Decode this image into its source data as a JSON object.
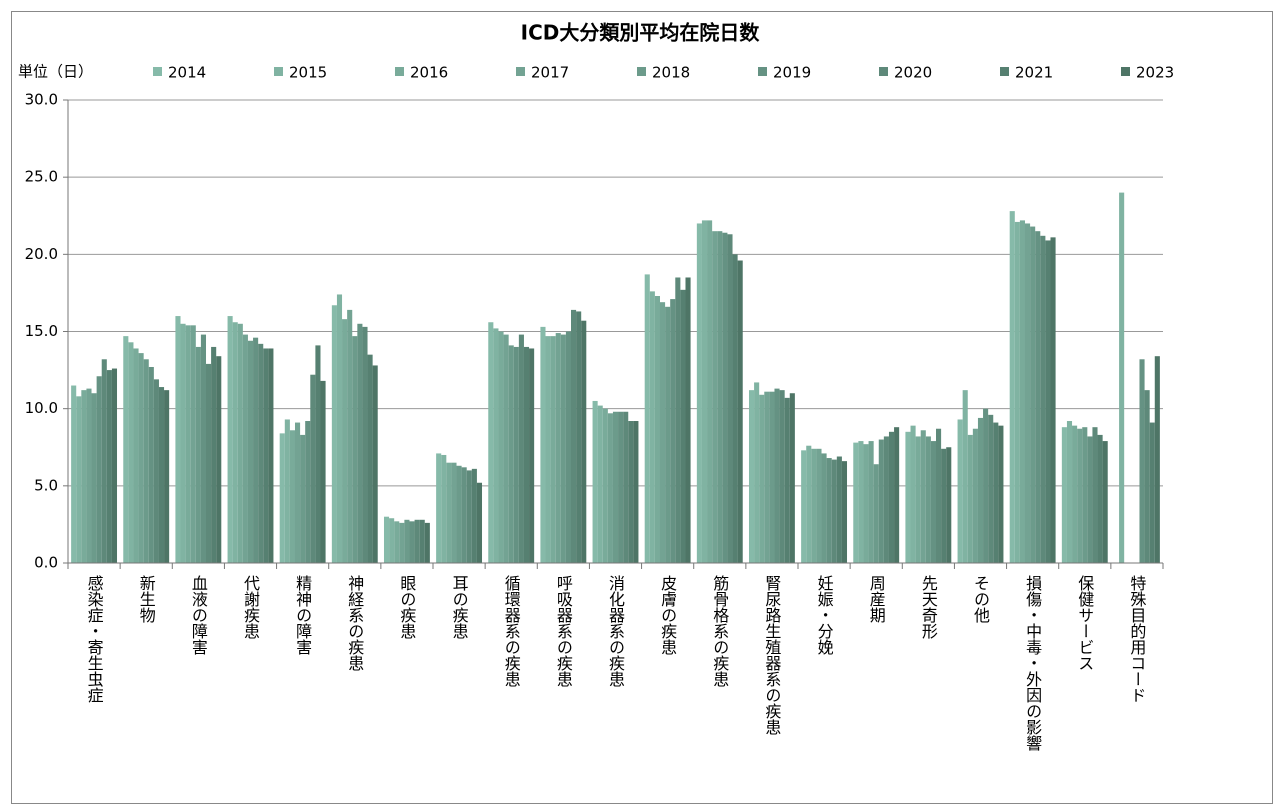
{
  "chart_data": {
    "type": "bar",
    "title": "ICD大分類別平均在院日数",
    "y_label": "単位（日）",
    "categories": [
      "感染症・寄生虫症",
      "新生物",
      "血液の障害",
      "代謝疾患",
      "精神の障害",
      "神経系の疾患",
      "眼の疾患",
      "耳の疾患",
      "循環器系の疾患",
      "呼吸器系の疾患",
      "消化器系の疾患",
      "皮膚の疾患",
      "筋骨格系の疾患",
      "腎尿路生殖器系の疾患",
      "妊娠・分娩",
      "周産期",
      "先天奇形",
      "その他",
      "損傷・中毒・外因の影響",
      "保健サービス",
      "特殊目的用コード"
    ],
    "series": [
      {
        "name": "2014",
        "color": "#86baa9",
        "values": [
          11.5,
          14.7,
          16.0,
          16.0,
          8.4,
          16.7,
          3.0,
          7.1,
          15.6,
          15.3,
          10.5,
          18.7,
          22.0,
          11.2,
          7.3,
          7.8,
          8.5,
          9.3,
          22.8,
          8.8,
          null
        ]
      },
      {
        "name": "2015",
        "color": "#80b3a2",
        "values": [
          10.8,
          14.3,
          15.5,
          15.6,
          9.3,
          17.4,
          2.9,
          7.0,
          15.2,
          14.7,
          10.2,
          17.6,
          22.2,
          11.7,
          7.6,
          7.9,
          8.9,
          11.2,
          22.1,
          9.2,
          24.0
        ]
      },
      {
        "name": "2016",
        "color": "#79ab9a",
        "values": [
          11.2,
          13.9,
          15.4,
          15.5,
          8.6,
          15.8,
          2.7,
          6.5,
          15.0,
          14.7,
          10.0,
          17.3,
          22.2,
          10.9,
          7.4,
          7.7,
          8.2,
          8.3,
          22.2,
          8.9,
          null
        ]
      },
      {
        "name": "2017",
        "color": "#73a393",
        "values": [
          11.3,
          13.6,
          15.4,
          14.8,
          9.1,
          16.4,
          2.6,
          6.5,
          14.8,
          14.9,
          9.7,
          16.9,
          21.5,
          11.1,
          7.4,
          7.9,
          8.6,
          8.7,
          22.0,
          8.7,
          null
        ]
      },
      {
        "name": "2018",
        "color": "#6c9b8b",
        "values": [
          11.0,
          13.2,
          14.0,
          14.4,
          8.3,
          14.7,
          2.8,
          6.3,
          14.1,
          14.8,
          9.8,
          16.6,
          21.5,
          11.1,
          7.1,
          6.4,
          8.2,
          9.4,
          21.8,
          8.8,
          null
        ]
      },
      {
        "name": "2019",
        "color": "#659283",
        "values": [
          12.1,
          12.7,
          14.8,
          14.6,
          9.2,
          15.5,
          2.7,
          6.2,
          14.0,
          15.0,
          9.8,
          17.1,
          21.4,
          11.3,
          6.8,
          8.0,
          7.9,
          10.0,
          21.5,
          8.2,
          13.2
        ]
      },
      {
        "name": "2020",
        "color": "#5e897a",
        "values": [
          13.2,
          11.9,
          12.9,
          14.2,
          12.2,
          15.3,
          2.8,
          6.0,
          14.8,
          16.4,
          9.8,
          18.5,
          21.3,
          11.2,
          6.7,
          8.2,
          8.7,
          9.6,
          21.2,
          8.8,
          11.2
        ]
      },
      {
        "name": "2021",
        "color": "#568071",
        "values": [
          12.5,
          11.4,
          14.0,
          13.9,
          14.1,
          13.5,
          2.8,
          6.1,
          14.0,
          16.3,
          9.2,
          17.7,
          20.0,
          10.7,
          6.9,
          8.5,
          7.4,
          9.1,
          20.9,
          8.3,
          9.1
        ]
      },
      {
        "name": "2023",
        "color": "#4e7566",
        "values": [
          12.6,
          11.2,
          13.4,
          13.9,
          11.8,
          12.8,
          2.6,
          5.2,
          13.9,
          15.7,
          9.2,
          18.5,
          19.6,
          11.0,
          6.6,
          8.8,
          7.5,
          8.9,
          21.1,
          7.9,
          13.4
        ]
      }
    ],
    "ylim": [
      0,
      30
    ],
    "yticks": [
      {
        "value": 0,
        "label": "0.0"
      },
      {
        "value": 5,
        "label": "5.0"
      },
      {
        "value": 10,
        "label": "10.0"
      },
      {
        "value": 15,
        "label": "15.0"
      },
      {
        "value": 20,
        "label": "20.0"
      },
      {
        "value": 25,
        "label": "25.0"
      },
      {
        "value": 30,
        "label": "30.0"
      }
    ],
    "grid": true
  }
}
